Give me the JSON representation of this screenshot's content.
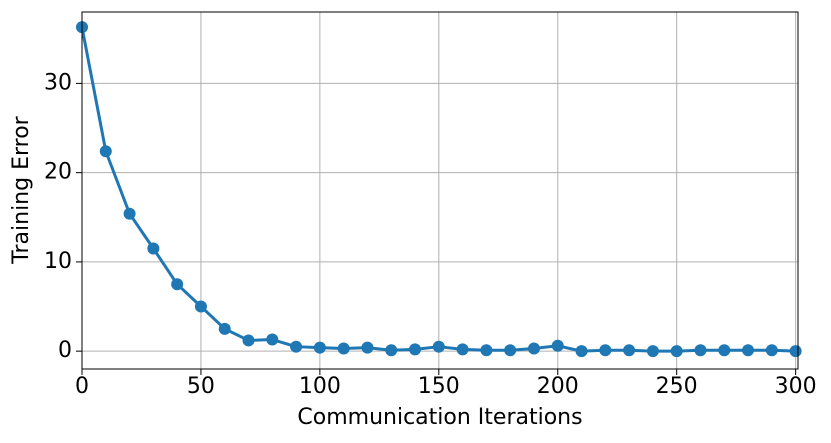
{
  "chart_data": {
    "type": "line",
    "xlabel": "Communication Iterations",
    "ylabel": "Training Error",
    "x": [
      0,
      10,
      20,
      30,
      40,
      50,
      60,
      70,
      80,
      90,
      100,
      110,
      120,
      130,
      140,
      150,
      160,
      170,
      180,
      190,
      200,
      210,
      220,
      230,
      240,
      250,
      260,
      270,
      280,
      290,
      300
    ],
    "series": [
      {
        "color": "#1f77b4",
        "values": [
          36.3,
          22.4,
          15.4,
          11.5,
          7.5,
          5.0,
          2.5,
          1.2,
          1.3,
          0.5,
          0.4,
          0.3,
          0.4,
          0.1,
          0.2,
          0.5,
          0.2,
          0.1,
          0.1,
          0.3,
          0.6,
          0.0,
          0.1,
          0.1,
          0.0,
          0.0,
          0.1,
          0.1,
          0.1,
          0.1,
          0.0
        ]
      }
    ],
    "xlim": [
      0,
      301
    ],
    "ylim": [
      -2,
      38
    ],
    "xticks": [
      0,
      50,
      100,
      150,
      200,
      250,
      300
    ],
    "yticks": [
      0,
      10,
      20,
      30
    ],
    "grid": true
  }
}
